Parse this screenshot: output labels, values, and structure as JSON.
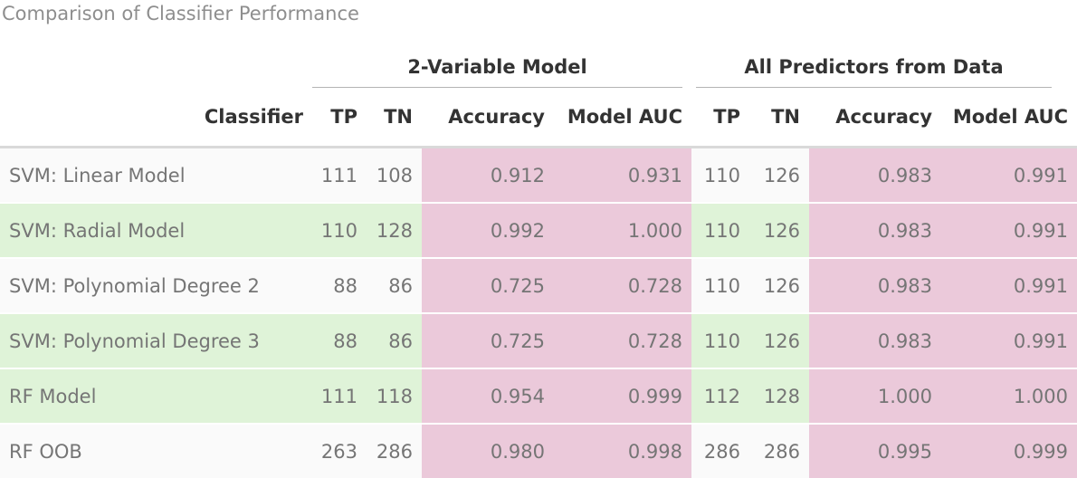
{
  "chart_data": {
    "type": "table",
    "title": "Comparison of Classifier Performance",
    "stub_header": "Classifier",
    "spanners": [
      {
        "label": "2-Variable Model",
        "columns": [
          "TP",
          "TN",
          "Accuracy",
          "Model AUC"
        ]
      },
      {
        "label": "All Predictors from Data",
        "columns": [
          "TP",
          "TN",
          "Accuracy",
          "Model AUC"
        ]
      }
    ],
    "columns": [
      "TP",
      "TN",
      "Accuracy",
      "Model AUC",
      "TP",
      "TN",
      "Accuracy",
      "Model AUC"
    ],
    "rows": [
      {
        "classifier": "SVM: Linear Model",
        "highlighted": false,
        "values": [
          "111",
          "108",
          "0.912",
          "0.931",
          "110",
          "126",
          "0.983",
          "0.991"
        ]
      },
      {
        "classifier": "SVM: Radial Model",
        "highlighted": true,
        "values": [
          "110",
          "128",
          "0.992",
          "1.000",
          "110",
          "126",
          "0.983",
          "0.991"
        ]
      },
      {
        "classifier": "SVM: Polynomial Degree 2",
        "highlighted": false,
        "values": [
          "88",
          "86",
          "0.725",
          "0.728",
          "110",
          "126",
          "0.983",
          "0.991"
        ]
      },
      {
        "classifier": "SVM: Polynomial Degree 3",
        "highlighted": true,
        "values": [
          "88",
          "86",
          "0.725",
          "0.728",
          "110",
          "126",
          "0.983",
          "0.991"
        ]
      },
      {
        "classifier": "RF Model",
        "highlighted": true,
        "values": [
          "111",
          "118",
          "0.954",
          "0.999",
          "112",
          "128",
          "1.000",
          "1.000"
        ]
      },
      {
        "classifier": "RF OOB",
        "highlighted": false,
        "values": [
          "263",
          "286",
          "0.980",
          "0.998",
          "286",
          "286",
          "0.995",
          "0.999"
        ]
      }
    ],
    "colors": {
      "highlight_green": "#dff3d8",
      "metric_pink": "#ebc9da",
      "plain_row": "#fafafa",
      "header_text": "#333333",
      "body_text": "#757575",
      "title_text": "#8e8e8e",
      "header_rule": "#d9d9d9",
      "spanner_rule": "#b4b4b4"
    },
    "layout": {
      "grid": "off",
      "legend": "none"
    }
  }
}
